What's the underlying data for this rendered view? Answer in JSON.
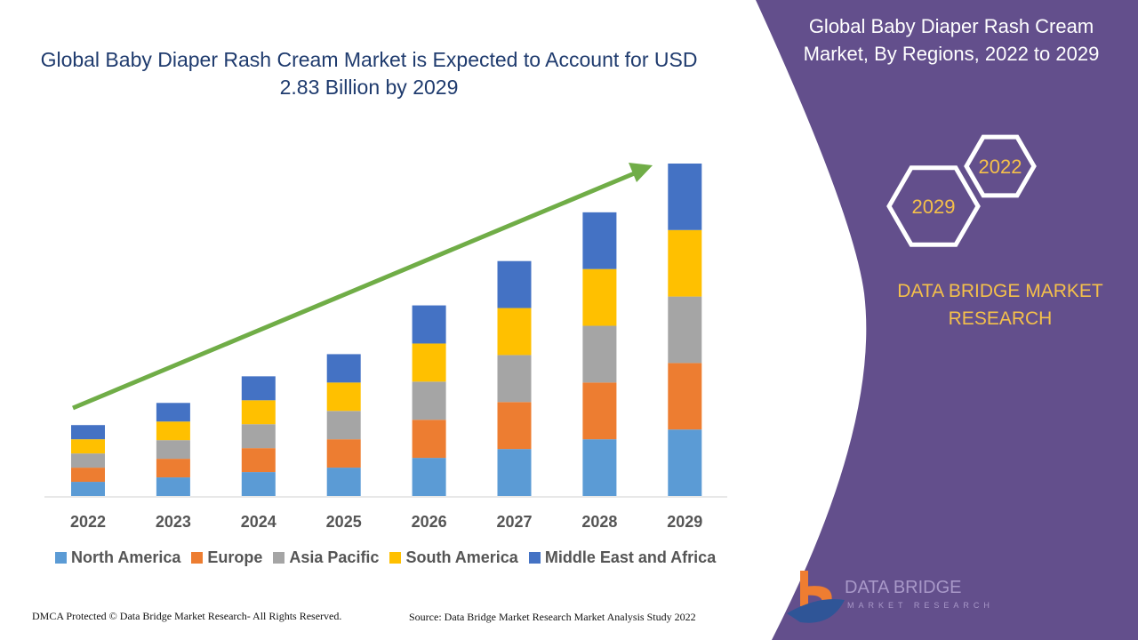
{
  "title": "Global Baby Diaper Rash Cream Market is Expected to Account for USD 2.83 Billion by 2029",
  "side_panel": {
    "title": "Global Baby Diaper Rash Cream Market, By Regions, 2022 to 2029",
    "hex_years": [
      "2022",
      "2029"
    ],
    "brand": "DATA BRIDGE MARKET RESEARCH",
    "logo_text": "DATA BRIDGE",
    "logo_subtext": "MARKET RESEARCH",
    "color": "#634f8c"
  },
  "footer": {
    "left": "DMCA Protected © Data Bridge Market Research- All Rights Reserved.",
    "right": "Source: Data Bridge Market Research Market Analysis Study 2022"
  },
  "chart_data": {
    "type": "bar",
    "stacked": true,
    "title": "Global Baby Diaper Rash Cream Market is Expected to Account for USD 2.83 Billion by 2029",
    "categories": [
      "2022",
      "2023",
      "2024",
      "2025",
      "2026",
      "2027",
      "2028",
      "2029"
    ],
    "series": [
      {
        "name": "North America",
        "color": "#5b9bd5",
        "values": [
          16,
          21,
          27,
          32,
          43,
          53,
          64,
          75
        ]
      },
      {
        "name": "Europe",
        "color": "#ed7d31",
        "values": [
          16,
          21,
          27,
          32,
          43,
          53,
          64,
          75
        ]
      },
      {
        "name": "Asia Pacific",
        "color": "#a5a5a5",
        "values": [
          16,
          21,
          27,
          32,
          43,
          53,
          64,
          75
        ]
      },
      {
        "name": "South America",
        "color": "#ffc000",
        "values": [
          16,
          21,
          27,
          32,
          43,
          53,
          64,
          75
        ]
      },
      {
        "name": "Middle East and Africa",
        "color": "#4472c4",
        "values": [
          16,
          21,
          27,
          32,
          43,
          53,
          64,
          75
        ]
      }
    ],
    "y_axis_shown": false,
    "grid": false,
    "legend_position": "bottom",
    "trend_arrow_color": "#70ad47"
  }
}
